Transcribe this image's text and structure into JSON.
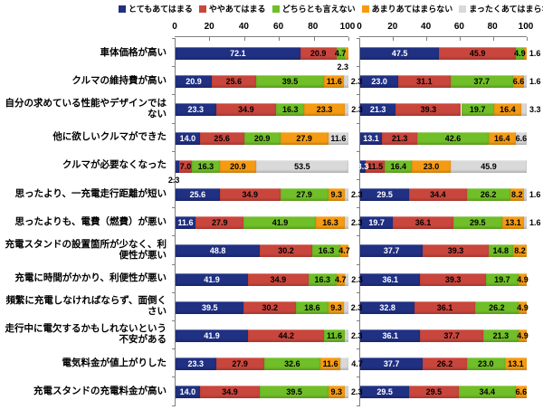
{
  "chart_data": {
    "type": "bar",
    "subtype": "horizontal-stacked-100-percent",
    "title": "",
    "legend_position": "top",
    "grid": false,
    "axis": {
      "ticks": [
        0,
        20,
        40,
        60,
        80,
        100
      ],
      "range": [
        0,
        100
      ]
    },
    "series": [
      {
        "name": "とてもあてはまる",
        "color": "#203082"
      },
      {
        "name": "ややあてはまる",
        "color": "#C9463D"
      },
      {
        "name": "どちらとも言えない",
        "color": "#70BE28"
      },
      {
        "name": "あまりあてはまらない",
        "color": "#F59B13"
      },
      {
        "name": "まったくあてはまらない",
        "color": "#D9D9D9"
      }
    ],
    "categories": [
      "車体価格が高い",
      "クルマの維持費が高い",
      "自分の求めている性能やデザインではない",
      "他に欲しいクルマができた",
      "クルマが必要なくなった",
      "思ったより、一充電走行距離が短い",
      "思ったよりも、電費（燃費）が悪い",
      "充電スタンドの設置箇所が少なく、利便性が悪い",
      "充電に時間がかかり、利便性が悪い",
      "頻繁に充電しなければならず、面倒くさい",
      "走行中に電欠するかもしれないという不安がある",
      "電気料金が値上がりした",
      "充電スタンドの充電料金が高い"
    ],
    "charts": [
      {
        "name": "left",
        "rows": [
          {
            "values": [
              "72.1",
              "20.9",
              "4.7",
              "2.3",
              "0"
            ],
            "pos": [
              "i",
              "i",
              "i",
              "b",
              null
            ]
          },
          {
            "values": [
              "20.9",
              "25.6",
              "39.5",
              "11.6",
              "2.3"
            ],
            "pos": [
              "i",
              "i",
              "i",
              "i",
              "a"
            ]
          },
          {
            "values": [
              "23.3",
              "34.9",
              "16.3",
              "23.3",
              "2.3"
            ],
            "pos": [
              "i",
              "i",
              "i",
              "i",
              "a"
            ]
          },
          {
            "values": [
              "14.0",
              "25.6",
              "20.9",
              "27.9",
              "11.6"
            ],
            "pos": [
              "i",
              "i",
              "i",
              "i",
              "i"
            ]
          },
          {
            "values": [
              "2.3",
              "7.0",
              "16.3",
              "20.9",
              "53.5"
            ],
            "pos": [
              "b",
              "i",
              "i",
              "i",
              "i"
            ]
          },
          {
            "values": [
              "25.6",
              "34.9",
              "27.9",
              "9.3",
              "2.3"
            ],
            "pos": [
              "i",
              "i",
              "i",
              "i",
              "a"
            ]
          },
          {
            "values": [
              "11.6",
              "27.9",
              "41.9",
              "16.3",
              "2.3"
            ],
            "pos": [
              "i",
              "i",
              "i",
              "i",
              "a"
            ]
          },
          {
            "values": [
              "48.8",
              "30.2",
              "16.3",
              "4.7",
              "0"
            ],
            "pos": [
              "i",
              "i",
              "i",
              "i",
              null
            ]
          },
          {
            "values": [
              "41.9",
              "34.9",
              "16.3",
              "4.7",
              "2.3"
            ],
            "pos": [
              "i",
              "i",
              "i",
              "i",
              "a"
            ]
          },
          {
            "values": [
              "39.5",
              "30.2",
              "18.6",
              "9.3",
              "2.3"
            ],
            "pos": [
              "i",
              "i",
              "i",
              "i",
              "a"
            ]
          },
          {
            "values": [
              "41.9",
              "44.2",
              "11.6",
              "0",
              "2.3"
            ],
            "pos": [
              "i",
              "i",
              "i",
              null,
              "a"
            ]
          },
          {
            "values": [
              "23.3",
              "27.9",
              "32.6",
              "11.6",
              "4.7"
            ],
            "pos": [
              "i",
              "i",
              "i",
              "i",
              "a"
            ]
          },
          {
            "values": [
              "14.0",
              "34.9",
              "39.5",
              "9.3",
              "2.3"
            ],
            "pos": [
              "i",
              "i",
              "i",
              "i",
              "a"
            ]
          }
        ]
      },
      {
        "name": "right",
        "rows": [
          {
            "values": [
              "47.5",
              "45.9",
              "4.9",
              "1.6",
              "0"
            ],
            "pos": [
              "i",
              "i",
              "i",
              "a",
              null
            ]
          },
          {
            "values": [
              "23.0",
              "31.1",
              "37.7",
              "6.6",
              "1.6"
            ],
            "pos": [
              "i",
              "i",
              "i",
              "i",
              "a"
            ]
          },
          {
            "values": [
              "21.3",
              "39.3",
              "19.7",
              "16.4",
              "3.3"
            ],
            "pos": [
              "i",
              "i",
              "i",
              "i",
              "a"
            ]
          },
          {
            "values": [
              "13.1",
              "21.3",
              "42.6",
              "16.4",
              "6.6"
            ],
            "pos": [
              "i",
              "i",
              "i",
              "i",
              "i"
            ]
          },
          {
            "values": [
              "3.3",
              "11.5",
              "16.4",
              "23.0",
              "45.9"
            ],
            "pos": [
              "i",
              "i",
              "i",
              "i",
              "i"
            ]
          },
          {
            "values": [
              "29.5",
              "34.4",
              "26.2",
              "8.2",
              "1.6"
            ],
            "pos": [
              "i",
              "i",
              "i",
              "i",
              "a"
            ]
          },
          {
            "values": [
              "19.7",
              "36.1",
              "29.5",
              "13.1",
              "1.6"
            ],
            "pos": [
              "i",
              "i",
              "i",
              "i",
              "a"
            ]
          },
          {
            "values": [
              "37.7",
              "39.3",
              "14.8",
              "8.2",
              "0"
            ],
            "pos": [
              "i",
              "i",
              "i",
              "i",
              null
            ]
          },
          {
            "values": [
              "36.1",
              "39.3",
              "19.7",
              "4.9",
              "0"
            ],
            "pos": [
              "i",
              "i",
              "i",
              "i",
              null
            ]
          },
          {
            "values": [
              "32.8",
              "36.1",
              "26.2",
              "4.9",
              "0"
            ],
            "pos": [
              "i",
              "i",
              "i",
              "i",
              null
            ]
          },
          {
            "values": [
              "36.1",
              "37.7",
              "21.3",
              "4.9",
              "0"
            ],
            "pos": [
              "i",
              "i",
              "i",
              "i",
              null
            ]
          },
          {
            "values": [
              "37.7",
              "26.2",
              "23.0",
              "13.1",
              "0"
            ],
            "pos": [
              "i",
              "i",
              "i",
              "i",
              null
            ]
          },
          {
            "values": [
              "29.5",
              "29.5",
              "34.4",
              "6.6",
              "0"
            ],
            "pos": [
              "i",
              "i",
              "i",
              "i",
              null
            ]
          }
        ]
      }
    ]
  },
  "colors": {
    "axis": "#808080",
    "background": "#FFFFFF",
    "label_on_navy": "#FFFFFF",
    "label_default": "#000000"
  }
}
